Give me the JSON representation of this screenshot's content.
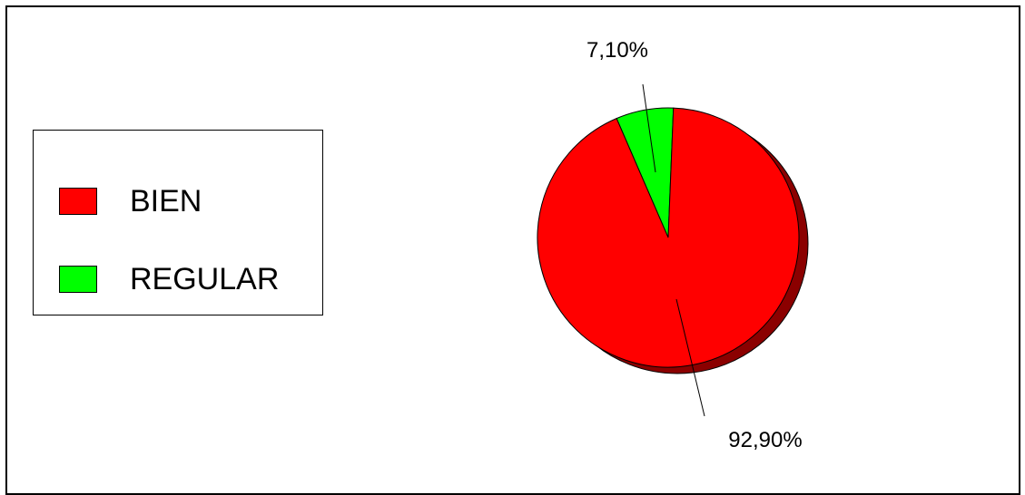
{
  "chart_data": {
    "type": "pie",
    "categories": [
      "BIEN",
      "REGULAR"
    ],
    "values": [
      92.9,
      7.1
    ],
    "colors": [
      "#ff0000",
      "#00ff00"
    ],
    "shadow_color": "#8b0000",
    "data_labels": [
      "92,90%",
      "7,10%"
    ],
    "legend": {
      "placement": "left",
      "entries": [
        "BIEN",
        "REGULAR"
      ]
    },
    "style": "3d-shadow"
  }
}
